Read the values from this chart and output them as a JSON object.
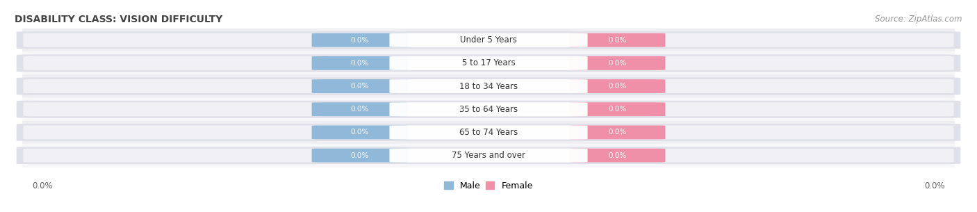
{
  "title": "DISABILITY CLASS: VISION DIFFICULTY",
  "source": "Source: ZipAtlas.com",
  "categories": [
    "Under 5 Years",
    "5 to 17 Years",
    "18 to 34 Years",
    "35 to 64 Years",
    "65 to 74 Years",
    "75 Years and over"
  ],
  "male_values": [
    0.0,
    0.0,
    0.0,
    0.0,
    0.0,
    0.0
  ],
  "female_values": [
    0.0,
    0.0,
    0.0,
    0.0,
    0.0,
    0.0
  ],
  "male_color": "#90b8d8",
  "female_color": "#f090a8",
  "male_label": "Male",
  "female_label": "Female",
  "title_fontsize": 10,
  "source_fontsize": 8.5,
  "axis_label_fontsize": 8.5,
  "bar_label_fontsize": 7.5,
  "category_fontsize": 8.5,
  "x_axis_label_left": "0.0%",
  "x_axis_label_right": "0.0%",
  "row_bg_even": "#eeeef3",
  "row_bg_odd": "#f7f7fa",
  "bar_bg_color": "#e0e0e8",
  "bar_inner_bg": "#f0f0f5"
}
